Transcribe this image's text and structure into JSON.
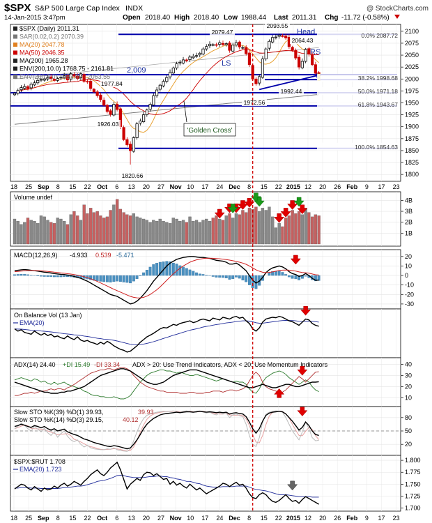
{
  "header": {
    "symbol": "$SPX",
    "name": "S&P 500 Large Cap Index",
    "exchange": "INDX",
    "watermark": "@ StockCharts.com",
    "date": "14-Jan-2015 3:47pm",
    "open_label": "Open",
    "open": "2018.40",
    "high_label": "High",
    "high": "2018.40",
    "low_label": "Low",
    "low": "1988.44",
    "last_label": "Last",
    "last": "2011.31",
    "chg_label": "Chg",
    "chg": "-11.72 (-0.58%)",
    "chg_icon": "down-triangle"
  },
  "colors": {
    "up_candle": "#000000",
    "down_candle": "#cc0000",
    "sma50": "#cc0000",
    "ma20": "#e8a030",
    "ma200": "#000000",
    "env": "#888888",
    "hline": "#0000aa",
    "ema": "#1e2a99",
    "vol_up": "#888888",
    "vol_down": "#c56060",
    "macd_hist": "#4a90c0",
    "adx": "#000000",
    "pdi": "#2b7a2b",
    "mdi": "#b03030",
    "arrow_red": "#e00000",
    "arrow_green": "#1a9a1a"
  },
  "price_panel": {
    "legend": [
      {
        "text": "$SPX (Daily) 2011.31",
        "color": "#000000"
      },
      {
        "text": "SAR(0.02,0.2) 2070.39",
        "color": "#777777"
      },
      {
        "text": "MA(20) 2047.78",
        "color": "#e08020"
      },
      {
        "text": "MA(50) 2046.35",
        "color": "#cc0000"
      },
      {
        "text": "MA(200) 1965.28",
        "color": "#000000"
      },
      {
        "text": "ENV(200,10.0) 1768.75 - 2161.81",
        "color": "#000000"
      },
      {
        "text": "ENV(200,5.0) 1867.02 - 2063.55",
        "color": "#777777"
      }
    ],
    "y_ticks": [
      "2100",
      "2075",
      "2050",
      "2025",
      "2000",
      "1975",
      "1950",
      "1925",
      "1900",
      "1875",
      "1850",
      "1825",
      "1800"
    ],
    "annotations": [
      {
        "text": "2079.47",
        "kind": "value"
      },
      {
        "text": "2093.55",
        "kind": "value"
      },
      {
        "text": "Head",
        "kind": "blue"
      },
      {
        "text": "2064.43",
        "kind": "value"
      },
      {
        "text": "RS",
        "kind": "blue"
      },
      {
        "text": "LS",
        "kind": "blue"
      },
      {
        "text": "2,009",
        "kind": "blue"
      },
      {
        "text": "1977.84",
        "kind": "value"
      },
      {
        "text": "1992.44",
        "kind": "value"
      },
      {
        "text": "1972.56",
        "kind": "value"
      },
      {
        "text": "1926.03",
        "kind": "value"
      },
      {
        "text": "1820.66",
        "kind": "value"
      },
      {
        "text": "'Golden Cross'",
        "kind": "box"
      }
    ],
    "fib_labels": [
      "0.0% 2087.72",
      "38.2% 1998.68",
      "50.0% 1971.18",
      "61.8% 1943.67",
      "100.0% 1854.63"
    ]
  },
  "x_axis_labels": [
    "18",
    "25",
    "Sep",
    "8",
    "15",
    "22",
    "Oct",
    "6",
    "13",
    "20",
    "27",
    "Nov",
    "10",
    "17",
    "24",
    "Dec",
    "8",
    "15",
    "22",
    "2015",
    "12",
    "20",
    "26",
    "Feb",
    "9",
    "17",
    "23"
  ],
  "volume_panel": {
    "legend": "Volume undef",
    "y_ticks": [
      "4B",
      "3B",
      "2B",
      "1B"
    ]
  },
  "macd_panel": {
    "legend_prefix": "MACD(12,26,9)",
    "v1": "-4.933",
    "v2": "0.539",
    "v3": "-5.471",
    "y_ticks": [
      "20",
      "10",
      "0",
      "-10",
      "-20",
      "-30"
    ]
  },
  "obv_panel": {
    "legend": "On Balance Vol (13 Jan)",
    "ema_legend": "EMA(20)"
  },
  "adx_panel": {
    "legend_prefix": "ADX(14) 24.40",
    "pdi": "+DI 15.49",
    "mdi": "-DI 33.34",
    "note": "ADX > 20: Use Trend Indicators, ADX < 20: Use Momentum Indicators",
    "y_ticks": [
      "40",
      "30",
      "20",
      "10"
    ]
  },
  "sto_panel": {
    "legend1_prefix": "Slow STO %K(39) %D(1) 39.93,",
    "legend1_val": "39.93",
    "legend2_prefix": "Slow STO %K(14) %D(3) 29.15,",
    "legend2_val": "40.12",
    "y_ticks": [
      "80",
      "50",
      "20"
    ]
  },
  "rel_panel": {
    "legend": "$SPX:$RUT 1.708",
    "ema_legend": "EMA(20) 1.723",
    "y_ticks": [
      "1.800",
      "1.775",
      "1.750",
      "1.725",
      "1.700"
    ]
  },
  "chart_data": {
    "type": "candlestick",
    "title": "$SPX S&P 500 Large Cap Index INDX",
    "ylim": [
      1790,
      2110
    ],
    "price_path": [
      1970,
      1976,
      1982,
      1984,
      1980,
      1989,
      1992,
      1997,
      1999,
      2000,
      2003,
      2001,
      1997,
      2001,
      2004,
      2007,
      1998,
      2011,
      2006,
      2001,
      2011,
      1995,
      1994,
      1980,
      1973,
      1965,
      1957,
      1945,
      1932,
      1926,
      1947,
      1936,
      1900,
      1873,
      1862,
      1850,
      1877,
      1906,
      1912,
      1925,
      1935,
      1947,
      1965,
      1977,
      1987,
      1995,
      2003,
      2014,
      2023,
      2032,
      2035,
      2040,
      2039,
      2046,
      2048,
      2049,
      2054,
      2063,
      2068,
      2073,
      2072,
      2071,
      2076,
      2072,
      2074,
      2060,
      2071,
      2076,
      2067,
      2066,
      2053,
      2030,
      2000,
      1990,
      2005,
      2042,
      2063,
      2079,
      2087,
      2088,
      2092,
      2090,
      2086,
      2068,
      2060,
      2044,
      2025,
      2037,
      2062,
      2052,
      2030,
      2012,
      2011
    ],
    "key_levels": {
      "high": 2093.55,
      "low": 1820.66,
      "breakout_line": 2009,
      "last": 2011.31
    },
    "fib_levels": [
      {
        "pct": "0.0%",
        "value": 2087.72
      },
      {
        "pct": "38.2%",
        "value": 1998.68
      },
      {
        "pct": "50.0%",
        "value": 1971.18
      },
      {
        "pct": "61.8%",
        "value": 1943.67
      },
      {
        "pct": "100.0%",
        "value": 1854.63
      }
    ],
    "volume_B": [
      2.3,
      2.1,
      1.8,
      2.0,
      2.4,
      2.2,
      2.1,
      1.9,
      2.6,
      2.5,
      2.2,
      2.0,
      1.9,
      2.4,
      2.3,
      2.1,
      1.8,
      2.7,
      3.0,
      2.6,
      2.2,
      3.6,
      2.8,
      3.3,
      2.9,
      3.0,
      2.6,
      2.4,
      2.5,
      3.1,
      3.6,
      4.1,
      3.2,
      2.9,
      2.7,
      2.6,
      2.8,
      2.5,
      2.4,
      2.3,
      2.2,
      2.0,
      2.2,
      2.1,
      2.3,
      2.1,
      2.0,
      1.9,
      2.4,
      2.3,
      2.1,
      2.2,
      2.0,
      2.5,
      2.1,
      2.2,
      2.0,
      2.2,
      2.3,
      2.1,
      2.4,
      2.6,
      2.3,
      2.2,
      2.6,
      2.8,
      2.4,
      2.8,
      2.7,
      3.1,
      2.9,
      3.3,
      3.2,
      3.4,
      3.0,
      3.3,
      3.1,
      3.4,
      2.5,
      1.5,
      1.9,
      1.6,
      2.4,
      2.6,
      3.1,
      2.8,
      3.0,
      2.7,
      3.3,
      2.9,
      2.5,
      2.7,
      2.6
    ],
    "macd": [
      5,
      5.5,
      6,
      6.2,
      6,
      5.5,
      5,
      4.6,
      4,
      3.5,
      3.1,
      2.6,
      2,
      1.6,
      1.2,
      1,
      0.5,
      0,
      -1,
      -2,
      -3,
      -4.5,
      -6,
      -8,
      -10,
      -12,
      -14,
      -16,
      -18,
      -20,
      -21,
      -22,
      -24,
      -26,
      -28,
      -30,
      -29,
      -27,
      -24,
      -20,
      -16,
      -11,
      -6,
      -2,
      2,
      6,
      10,
      13,
      15,
      17,
      18,
      19,
      19.5,
      20,
      20,
      19.5,
      19,
      19,
      18.5,
      18,
      17,
      16,
      15.5,
      15,
      14,
      12,
      12,
      13,
      11,
      8,
      5,
      0,
      -5,
      -8,
      -6,
      -2,
      3,
      6,
      8,
      9,
      10,
      9,
      7,
      4,
      2,
      1,
      -1,
      0,
      2,
      0,
      -3,
      -5,
      -4.9
    ],
    "macd_signal": [
      4,
      4.3,
      4.6,
      4.9,
      5.1,
      5.2,
      5.2,
      5.1,
      4.9,
      4.6,
      4.3,
      3.9,
      3.5,
      3.1,
      2.7,
      2.3,
      1.9,
      1.5,
      1,
      0.3,
      -0.4,
      -1.3,
      -2.3,
      -3.5,
      -4.8,
      -6.3,
      -7.8,
      -9.4,
      -11.1,
      -12.8,
      -14.5,
      -16,
      -17.5,
      -19,
      -20.6,
      -22,
      -23,
      -23.5,
      -23.6,
      -23,
      -21.8,
      -19.9,
      -17.6,
      -15,
      -12,
      -8.5,
      -5,
      -1.6,
      1.8,
      4.8,
      7.6,
      10,
      12,
      14,
      15.4,
      16.5,
      17.2,
      17.8,
      18.1,
      18.2,
      18.1,
      17.9,
      17.6,
      17.2,
      16.8,
      16.2,
      15.5,
      14.8,
      14,
      13,
      11.8,
      10,
      8,
      6,
      4.5,
      3.4,
      3,
      3.3,
      3.8,
      4.5,
      5.2,
      5.6,
      5.8,
      5.6,
      5.2,
      4.6,
      3.8,
      3.2,
      2.9,
      2.4,
      1.6,
      0.8,
      0.5
    ],
    "obv": [
      0.6,
      0.55,
      0.58,
      0.52,
      0.5,
      0.48,
      0.55,
      0.5,
      0.46,
      0.5,
      0.45,
      0.48,
      0.42,
      0.44,
      0.4,
      0.38,
      0.44,
      0.39,
      0.36,
      0.42,
      0.35,
      0.32,
      0.34,
      0.3,
      0.28,
      0.25,
      0.3,
      0.26,
      0.32,
      0.28,
      0.22,
      0.18,
      0.14,
      0.12,
      0.08,
      0.1,
      0.16,
      0.22,
      0.3,
      0.36,
      0.42,
      0.46,
      0.5,
      0.55,
      0.6,
      0.63,
      0.62,
      0.66,
      0.7,
      0.68,
      0.72,
      0.74,
      0.76,
      0.78,
      0.74,
      0.76,
      0.8,
      0.82,
      0.8,
      0.78,
      0.84,
      0.82,
      0.8,
      0.86,
      0.84,
      0.82,
      0.86,
      0.88,
      0.84,
      0.86,
      0.78,
      0.72,
      0.6,
      0.55,
      0.62,
      0.75,
      0.82,
      0.84,
      0.86,
      0.85,
      0.88,
      0.86,
      0.82,
      0.78,
      0.76,
      0.72,
      0.68,
      0.75,
      0.82,
      0.8,
      0.72,
      0.68,
      0.66
    ],
    "adx": [
      24,
      23,
      22,
      21,
      20,
      19,
      18,
      17,
      16,
      15,
      15,
      14,
      14,
      14,
      15,
      15,
      16,
      16,
      17,
      18,
      19,
      20,
      22,
      24,
      26,
      28,
      30,
      31,
      32,
      33,
      34,
      35,
      36,
      36,
      35,
      34,
      32,
      30,
      28,
      26,
      24,
      23,
      22,
      22,
      23,
      24,
      26,
      28,
      30,
      31,
      32,
      33,
      34,
      35,
      35,
      35,
      34,
      33,
      32,
      31,
      30,
      29,
      28,
      27,
      26,
      25,
      24,
      23,
      22,
      21,
      20,
      19,
      19,
      20,
      21,
      22,
      21,
      20,
      19,
      19,
      20,
      21,
      22,
      22,
      21,
      20,
      20,
      21,
      22,
      23,
      24,
      24,
      24.4
    ],
    "pdi": [
      26,
      27,
      28,
      27,
      26,
      25,
      27,
      26,
      24,
      25,
      23,
      22,
      24,
      22,
      23,
      24,
      22,
      21,
      20,
      19,
      18,
      16,
      15,
      13,
      12,
      12,
      11,
      11,
      10,
      10,
      11,
      10,
      9,
      9,
      10,
      12,
      16,
      20,
      24,
      27,
      30,
      32,
      33,
      34,
      35,
      35,
      34,
      34,
      33,
      32,
      33,
      32,
      31,
      30,
      30,
      31,
      30,
      29,
      28,
      27,
      26,
      25,
      26,
      27,
      26,
      25,
      24,
      25,
      24,
      24,
      22,
      18,
      15,
      14,
      18,
      24,
      28,
      30,
      32,
      33,
      34,
      33,
      31,
      28,
      26,
      24,
      22,
      24,
      26,
      24,
      20,
      17,
      15.5
    ],
    "mdi": [
      12,
      12,
      13,
      14,
      14,
      15,
      14,
      15,
      16,
      16,
      17,
      18,
      17,
      18,
      18,
      17,
      19,
      20,
      22,
      24,
      26,
      28,
      30,
      32,
      33,
      34,
      35,
      35,
      36,
      36,
      35,
      36,
      37,
      37,
      36,
      34,
      30,
      27,
      24,
      22,
      20,
      19,
      18,
      17,
      16,
      16,
      15,
      15,
      15,
      15,
      14,
      14,
      14,
      15,
      15,
      14,
      14,
      14,
      15,
      15,
      16,
      16,
      16,
      15,
      16,
      17,
      17,
      16,
      17,
      18,
      20,
      25,
      30,
      33,
      30,
      24,
      20,
      18,
      17,
      16,
      15,
      15,
      17,
      20,
      23,
      26,
      29,
      27,
      24,
      27,
      30,
      33,
      33.3
    ],
    "sto39": [
      60,
      62,
      65,
      63,
      60,
      58,
      62,
      60,
      57,
      60,
      55,
      52,
      55,
      50,
      52,
      54,
      48,
      45,
      42,
      40,
      36,
      32,
      30,
      27,
      24,
      22,
      20,
      18,
      16,
      15,
      17,
      16,
      14,
      12,
      10,
      12,
      20,
      30,
      42,
      55,
      65,
      72,
      78,
      82,
      86,
      88,
      89,
      90,
      91,
      92,
      91,
      92,
      93,
      93,
      92,
      93,
      94,
      93,
      92,
      93,
      92,
      91,
      92,
      91,
      92,
      88,
      90,
      91,
      89,
      88,
      82,
      70,
      55,
      45,
      55,
      72,
      85,
      90,
      92,
      93,
      94,
      93,
      88,
      80,
      72,
      62,
      52,
      58,
      70,
      62,
      50,
      42,
      40
    ],
    "sto14": [
      55,
      60,
      68,
      62,
      55,
      50,
      60,
      54,
      48,
      56,
      46,
      40,
      48,
      36,
      44,
      50,
      38,
      30,
      26,
      30,
      20,
      14,
      18,
      12,
      10,
      9,
      8,
      8,
      10,
      9,
      12,
      8,
      6,
      5,
      4,
      10,
      28,
      48,
      65,
      78,
      85,
      88,
      90,
      92,
      93,
      94,
      93,
      94,
      95,
      93,
      92,
      94,
      95,
      93,
      91,
      94,
      95,
      93,
      90,
      92,
      88,
      86,
      90,
      88,
      90,
      80,
      86,
      88,
      84,
      82,
      65,
      40,
      20,
      15,
      35,
      70,
      88,
      92,
      94,
      95,
      94,
      92,
      80,
      65,
      50,
      40,
      30,
      48,
      70,
      55,
      35,
      28,
      29
    ],
    "ratio": [
      1.74,
      1.745,
      1.75,
      1.748,
      1.742,
      1.738,
      1.745,
      1.74,
      1.735,
      1.742,
      1.738,
      1.74,
      1.746,
      1.742,
      1.748,
      1.752,
      1.746,
      1.75,
      1.756,
      1.752,
      1.748,
      1.756,
      1.762,
      1.77,
      1.775,
      1.78,
      1.772,
      1.768,
      1.775,
      1.784,
      1.79,
      1.796,
      1.78,
      1.76,
      1.74,
      1.75,
      1.756,
      1.762,
      1.758,
      1.77,
      1.775,
      1.774,
      1.768,
      1.772,
      1.766,
      1.76,
      1.762,
      1.75,
      1.756,
      1.748,
      1.752,
      1.746,
      1.742,
      1.75,
      1.744,
      1.738,
      1.742,
      1.736,
      1.73,
      1.734,
      1.738,
      1.742,
      1.746,
      1.752,
      1.75,
      1.745,
      1.75,
      1.754,
      1.748,
      1.75,
      1.742,
      1.73,
      1.722,
      1.72,
      1.728,
      1.732,
      1.728,
      1.72,
      1.714,
      1.712,
      1.716,
      1.722,
      1.728,
      1.72,
      1.714,
      1.716,
      1.71,
      1.718,
      1.724,
      1.72,
      1.716,
      1.712,
      1.708
    ],
    "ratio_ema": [
      1.742,
      1.742,
      1.743,
      1.743,
      1.743,
      1.742,
      1.742,
      1.742,
      1.741,
      1.741,
      1.741,
      1.741,
      1.741,
      1.741,
      1.742,
      1.743,
      1.743,
      1.744,
      1.745,
      1.746,
      1.746,
      1.747,
      1.749,
      1.751,
      1.753,
      1.756,
      1.757,
      1.758,
      1.76,
      1.762,
      1.765,
      1.768,
      1.769,
      1.768,
      1.766,
      1.765,
      1.764,
      1.764,
      1.764,
      1.764,
      1.765,
      1.766,
      1.766,
      1.767,
      1.767,
      1.766,
      1.766,
      1.764,
      1.763,
      1.761,
      1.76,
      1.758,
      1.756,
      1.756,
      1.754,
      1.752,
      1.751,
      1.748,
      1.746,
      1.745,
      1.744,
      1.744,
      1.744,
      1.745,
      1.745,
      1.745,
      1.745,
      1.746,
      1.746,
      1.746,
      1.746,
      1.744,
      1.741,
      1.739,
      1.738,
      1.737,
      1.736,
      1.734,
      1.732,
      1.73,
      1.728,
      1.728,
      1.728,
      1.727,
      1.726,
      1.725,
      1.724,
      1.724,
      1.724,
      1.724,
      1.723,
      1.723,
      1.723
    ],
    "red_arrows_volume": [
      62,
      65,
      67,
      69,
      71,
      80,
      82,
      84,
      87
    ],
    "green_arrows_volume": [
      66,
      73,
      74,
      86
    ]
  }
}
